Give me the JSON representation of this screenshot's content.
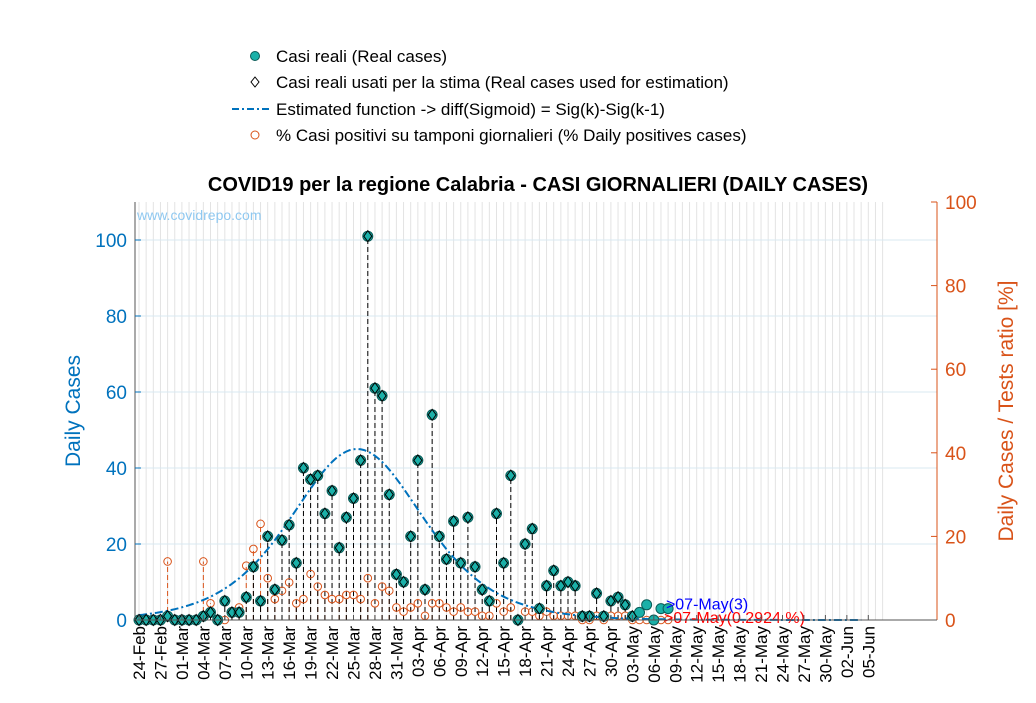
{
  "chart_data": {
    "type": "scatter",
    "title": "COVID19 per la regione Calabria - CASI GIORNALIERI (DAILY CASES)",
    "watermark": "www.covidrepo.com",
    "ylabel_left": "Daily Cases",
    "ylabel_right": "Daily Cases / Tests ratio [%]",
    "ylim_left": [
      0,
      110
    ],
    "ylim_right": [
      0,
      100
    ],
    "yticks_left": [
      "0",
      "20",
      "40",
      "60",
      "80",
      "100"
    ],
    "yticks_right": [
      "0",
      "20",
      "40",
      "60",
      "80",
      "100"
    ],
    "x_start_date": "24-Feb",
    "x_days": 105,
    "xtick_labels": [
      "24-Feb",
      "27-Feb",
      "01-Mar",
      "04-Mar",
      "07-Mar",
      "10-Mar",
      "13-Mar",
      "16-Mar",
      "19-Mar",
      "22-Mar",
      "25-Mar",
      "28-Mar",
      "31-Mar",
      "03-Apr",
      "06-Apr",
      "09-Apr",
      "12-Apr",
      "15-Apr",
      "18-Apr",
      "21-Apr",
      "24-Apr",
      "27-Apr",
      "30-Apr",
      "03-May",
      "06-May",
      "09-May",
      "12-May",
      "15-May",
      "18-May",
      "21-May",
      "24-May",
      "27-May",
      "30-May",
      "02-Jun",
      "05-Jun"
    ],
    "grid": true,
    "legend_position": "top-center",
    "legend": [
      {
        "label": "Casi reali (Real cases)",
        "marker": "filled-circle"
      },
      {
        "label": "Casi reali usati per la stima (Real cases used for estimation)",
        "marker": "diamond"
      },
      {
        "label": "Estimated function -> diff(Sigmoid) = Sig(k)-Sig(k-1)",
        "marker": "dash-dot-line"
      },
      {
        "label": "% Casi positivi su tamponi giornalieri (% Daily positives cases)",
        "marker": "open-circle"
      }
    ],
    "series": [
      {
        "name": "Casi reali (Real cases)",
        "values": [
          0,
          0,
          0,
          0,
          1,
          0,
          0,
          0,
          0,
          1,
          2,
          0,
          5,
          2,
          2,
          6,
          14,
          5,
          22,
          8,
          21,
          25,
          15,
          40,
          37,
          38,
          28,
          34,
          19,
          27,
          32,
          42,
          101,
          61,
          59,
          33,
          12,
          10,
          22,
          42,
          8,
          54,
          22,
          16,
          26,
          15,
          27,
          14,
          8,
          5,
          28,
          15,
          38,
          0,
          20,
          24,
          3,
          9,
          13,
          9,
          10,
          9,
          1,
          1,
          7,
          1,
          5,
          6,
          4,
          1,
          2,
          4,
          0,
          3,
          3
        ]
      },
      {
        "name": "Casi reali usati per la stima (Real cases used for estimation)",
        "values": [
          0,
          0,
          0,
          0,
          1,
          0,
          0,
          0,
          0,
          1,
          2,
          0,
          5,
          2,
          2,
          6,
          14,
          5,
          22,
          8,
          21,
          25,
          15,
          40,
          37,
          38,
          28,
          34,
          19,
          27,
          32,
          42,
          101,
          61,
          59,
          33,
          12,
          10,
          22,
          42,
          8,
          54,
          22,
          16,
          26,
          15,
          27,
          14,
          8,
          5,
          28,
          15,
          38,
          0,
          20,
          24,
          3,
          9,
          13,
          9,
          10,
          9,
          1,
          1,
          7,
          1,
          5,
          6,
          4,
          1
        ]
      },
      {
        "name": "% Casi positivi su tamponi giornalieri (% Daily positives cases)",
        "values": [
          0,
          0,
          0,
          0,
          14,
          0,
          0,
          0,
          0,
          14,
          4,
          0,
          0,
          2,
          3,
          13,
          17,
          23,
          10,
          5,
          7,
          9,
          4,
          5,
          11,
          8,
          6,
          5,
          5,
          6,
          6,
          5,
          10,
          4,
          8,
          7,
          3,
          2,
          3,
          4,
          1,
          4,
          4,
          3,
          2,
          3,
          2,
          2,
          1,
          1,
          4,
          2,
          3,
          0,
          2,
          2,
          1,
          2,
          1,
          1,
          1,
          1,
          0,
          0,
          1,
          0,
          1,
          1,
          1,
          0,
          0,
          0,
          0,
          0,
          0
        ]
      }
    ],
    "estimated_function": {
      "name": "Estimated function -> diff(Sigmoid) = Sig(k)-Sig(k-1)",
      "peak_day_index": 30.5,
      "peak_value": 45,
      "last_day_index": 101
    },
    "annotations": [
      {
        "text": ">07-May(3)",
        "color": "#0000ff",
        "day_index": 73,
        "value_left": 3
      },
      {
        "text": ">07-May(0.2924 %)",
        "color": "#ff0000",
        "day_index": 73,
        "value_right": 0.2924
      }
    ]
  }
}
